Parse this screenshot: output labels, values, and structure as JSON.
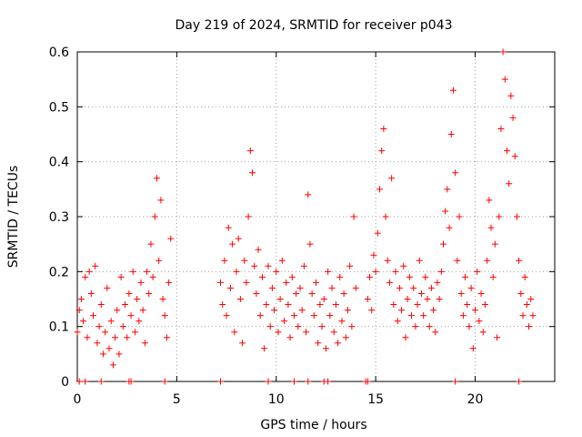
{
  "chart_data": {
    "type": "scatter",
    "title": "Day 219 of 2024, SRMTID for receiver p043",
    "xlabel": "GPS time / hours",
    "ylabel": "SRMTID / TECUs",
    "xlim": [
      0,
      24
    ],
    "ylim": [
      0,
      0.6
    ],
    "xticks": [
      0,
      5,
      10,
      15,
      20
    ],
    "xtick_labels": [
      "0",
      "5",
      "10",
      "15",
      "20"
    ],
    "yticks": [
      0,
      0.1,
      0.2,
      0.3,
      0.4,
      0.5,
      0.6
    ],
    "ytick_labels": [
      "0",
      "0.1",
      "0.2",
      "0.3",
      "0.4",
      "0.5",
      "0.6"
    ],
    "grid": true,
    "marker": "+",
    "color": "#ff0000",
    "series": [
      {
        "name": "SRMTID",
        "points": [
          [
            0.0,
            0.09
          ],
          [
            0.1,
            0.13
          ],
          [
            0.2,
            0.15
          ],
          [
            0.3,
            0.11
          ],
          [
            0.4,
            0.19
          ],
          [
            0.5,
            0.08
          ],
          [
            0.6,
            0.2
          ],
          [
            0.7,
            0.16
          ],
          [
            0.8,
            0.12
          ],
          [
            0.9,
            0.21
          ],
          [
            1.0,
            0.07
          ],
          [
            1.1,
            0.1
          ],
          [
            1.2,
            0.14
          ],
          [
            1.3,
            0.05
          ],
          [
            1.4,
            0.09
          ],
          [
            1.5,
            0.17
          ],
          [
            1.6,
            0.06
          ],
          [
            1.7,
            0.11
          ],
          [
            1.8,
            0.03
          ],
          [
            1.9,
            0.08
          ],
          [
            2.0,
            0.13
          ],
          [
            2.1,
            0.05
          ],
          [
            2.2,
            0.19
          ],
          [
            2.3,
            0.1
          ],
          [
            2.4,
            0.14
          ],
          [
            2.5,
            0.08
          ],
          [
            2.6,
            0.16
          ],
          [
            2.7,
            0.12
          ],
          [
            2.8,
            0.2
          ],
          [
            2.9,
            0.09
          ],
          [
            3.0,
            0.15
          ],
          [
            3.1,
            0.11
          ],
          [
            3.2,
            0.18
          ],
          [
            3.3,
            0.13
          ],
          [
            3.4,
            0.07
          ],
          [
            3.5,
            0.2
          ],
          [
            3.6,
            0.16
          ],
          [
            3.7,
            0.25
          ],
          [
            3.8,
            0.19
          ],
          [
            3.9,
            0.3
          ],
          [
            4.0,
            0.37
          ],
          [
            4.1,
            0.22
          ],
          [
            4.2,
            0.33
          ],
          [
            4.3,
            0.15
          ],
          [
            4.4,
            0.12
          ],
          [
            4.5,
            0.08
          ],
          [
            4.6,
            0.18
          ],
          [
            4.7,
            0.26
          ],
          [
            7.2,
            0.18
          ],
          [
            7.3,
            0.14
          ],
          [
            7.4,
            0.22
          ],
          [
            7.5,
            0.12
          ],
          [
            7.6,
            0.28
          ],
          [
            7.7,
            0.17
          ],
          [
            7.8,
            0.25
          ],
          [
            7.9,
            0.09
          ],
          [
            8.0,
            0.2
          ],
          [
            8.1,
            0.26
          ],
          [
            8.2,
            0.15
          ],
          [
            8.3,
            0.07
          ],
          [
            8.4,
            0.22
          ],
          [
            8.5,
            0.18
          ],
          [
            8.6,
            0.3
          ],
          [
            8.7,
            0.42
          ],
          [
            8.8,
            0.38
          ],
          [
            8.9,
            0.21
          ],
          [
            9.0,
            0.16
          ],
          [
            9.1,
            0.24
          ],
          [
            9.2,
            0.12
          ],
          [
            9.3,
            0.19
          ],
          [
            9.4,
            0.06
          ],
          [
            9.5,
            0.14
          ],
          [
            9.6,
            0.21
          ],
          [
            9.7,
            0.1
          ],
          [
            9.8,
            0.17
          ],
          [
            9.9,
            0.13
          ],
          [
            10.0,
            0.2
          ],
          [
            10.1,
            0.09
          ],
          [
            10.2,
            0.15
          ],
          [
            10.3,
            0.22
          ],
          [
            10.4,
            0.11
          ],
          [
            10.5,
            0.18
          ],
          [
            10.6,
            0.14
          ],
          [
            10.7,
            0.08
          ],
          [
            10.8,
            0.19
          ],
          [
            10.9,
            0.12
          ],
          [
            11.0,
            0.16
          ],
          [
            11.1,
            0.1
          ],
          [
            11.2,
            0.17
          ],
          [
            11.3,
            0.13
          ],
          [
            11.4,
            0.21
          ],
          [
            11.5,
            0.09
          ],
          [
            11.6,
            0.34
          ],
          [
            11.7,
            0.25
          ],
          [
            11.8,
            0.16
          ],
          [
            11.9,
            0.12
          ],
          [
            12.0,
            0.18
          ],
          [
            12.1,
            0.07
          ],
          [
            12.2,
            0.14
          ],
          [
            12.3,
            0.1
          ],
          [
            12.4,
            0.15
          ],
          [
            12.5,
            0.06
          ],
          [
            12.6,
            0.2
          ],
          [
            12.7,
            0.12
          ],
          [
            12.8,
            0.17
          ],
          [
            12.9,
            0.09
          ],
          [
            13.0,
            0.14
          ],
          [
            13.1,
            0.07
          ],
          [
            13.2,
            0.19
          ],
          [
            13.3,
            0.11
          ],
          [
            13.4,
            0.16
          ],
          [
            13.5,
            0.08
          ],
          [
            13.6,
            0.13
          ],
          [
            13.7,
            0.21
          ],
          [
            13.8,
            0.1
          ],
          [
            13.9,
            0.3
          ],
          [
            14.0,
            0.17
          ],
          [
            14.6,
            0.15
          ],
          [
            14.7,
            0.19
          ],
          [
            14.8,
            0.13
          ],
          [
            14.9,
            0.23
          ],
          [
            15.0,
            0.2
          ],
          [
            15.1,
            0.27
          ],
          [
            15.2,
            0.35
          ],
          [
            15.3,
            0.42
          ],
          [
            15.4,
            0.46
          ],
          [
            15.5,
            0.3
          ],
          [
            15.6,
            0.22
          ],
          [
            15.7,
            0.18
          ],
          [
            15.8,
            0.37
          ],
          [
            15.9,
            0.14
          ],
          [
            16.0,
            0.2
          ],
          [
            16.1,
            0.11
          ],
          [
            16.2,
            0.17
          ],
          [
            16.3,
            0.13
          ],
          [
            16.4,
            0.21
          ],
          [
            16.5,
            0.08
          ],
          [
            16.6,
            0.15
          ],
          [
            16.7,
            0.19
          ],
          [
            16.8,
            0.12
          ],
          [
            16.9,
            0.17
          ],
          [
            17.0,
            0.1
          ],
          [
            17.1,
            0.14
          ],
          [
            17.2,
            0.22
          ],
          [
            17.3,
            0.16
          ],
          [
            17.4,
            0.12
          ],
          [
            17.5,
            0.19
          ],
          [
            17.6,
            0.15
          ],
          [
            17.7,
            0.1
          ],
          [
            17.8,
            0.17
          ],
          [
            17.9,
            0.13
          ],
          [
            18.0,
            0.09
          ],
          [
            18.1,
            0.18
          ],
          [
            18.2,
            0.15
          ],
          [
            18.3,
            0.2
          ],
          [
            18.4,
            0.25
          ],
          [
            18.5,
            0.31
          ],
          [
            18.6,
            0.35
          ],
          [
            18.7,
            0.28
          ],
          [
            18.8,
            0.45
          ],
          [
            18.9,
            0.53
          ],
          [
            19.0,
            0.38
          ],
          [
            19.1,
            0.22
          ],
          [
            19.2,
            0.3
          ],
          [
            19.3,
            0.16
          ],
          [
            19.4,
            0.12
          ],
          [
            19.5,
            0.19
          ],
          [
            19.6,
            0.14
          ],
          [
            19.7,
            0.1
          ],
          [
            19.8,
            0.17
          ],
          [
            19.9,
            0.06
          ],
          [
            20.0,
            0.13
          ],
          [
            20.1,
            0.2
          ],
          [
            20.2,
            0.11
          ],
          [
            20.3,
            0.16
          ],
          [
            20.4,
            0.09
          ],
          [
            20.5,
            0.14
          ],
          [
            20.6,
            0.22
          ],
          [
            20.7,
            0.33
          ],
          [
            20.8,
            0.28
          ],
          [
            20.9,
            0.19
          ],
          [
            21.0,
            0.25
          ],
          [
            21.1,
            0.08
          ],
          [
            21.2,
            0.3
          ],
          [
            21.3,
            0.46
          ],
          [
            21.4,
            0.6
          ],
          [
            21.5,
            0.55
          ],
          [
            21.6,
            0.42
          ],
          [
            21.7,
            0.36
          ],
          [
            21.8,
            0.52
          ],
          [
            21.9,
            0.48
          ],
          [
            22.0,
            0.41
          ],
          [
            22.1,
            0.3
          ],
          [
            22.2,
            0.22
          ],
          [
            22.3,
            0.16
          ],
          [
            22.4,
            0.12
          ],
          [
            22.5,
            0.19
          ],
          [
            22.6,
            0.14
          ],
          [
            22.7,
            0.1
          ],
          [
            22.8,
            0.15
          ],
          [
            22.9,
            0.12
          ]
        ]
      }
    ],
    "zero_points_x": [
      0.1,
      0.4,
      1.2,
      2.6,
      2.7,
      4.4,
      7.2,
      9.6,
      10.9,
      11.6,
      12.4,
      12.6,
      14.5,
      14.6,
      19.0,
      22.2
    ]
  }
}
